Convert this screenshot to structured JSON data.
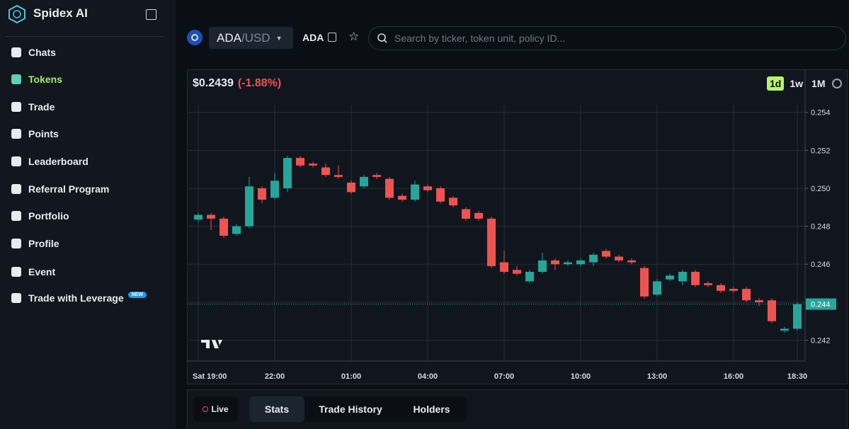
{
  "sidebar": {
    "brand": "Spidex AI",
    "items": [
      "Chats",
      "Tokens",
      "Trade",
      "Points",
      "Leaderboard",
      "Referral Program",
      "Portfolio",
      "Profile",
      "Event",
      "Trade with Leverage"
    ],
    "active": "Tokens",
    "badge": "NEW"
  },
  "header": {
    "pair_base": "ADA",
    "pair_quote": "/USD",
    "ticker": "ADA",
    "search_placeholder": "Search by ticker, token unit, policy ID..."
  },
  "panel": {
    "price": "$0.2439",
    "change": "(-1.88%)",
    "timeframes": [
      "1d",
      "1w",
      "1M"
    ],
    "active_timeframe": "1d"
  },
  "chart_data": {
    "type": "candlestick",
    "categories": [
      "Sat 19:00",
      null,
      null,
      null,
      null,
      null,
      "22:00",
      null,
      null,
      null,
      null,
      null,
      "01:00",
      null,
      null,
      null,
      null,
      null,
      "04:00",
      null,
      null,
      null,
      null,
      null,
      "07:00",
      null,
      null,
      null,
      null,
      null,
      "10:00",
      null,
      null,
      null,
      null,
      null,
      "13:00",
      null,
      null,
      null,
      null,
      null,
      "16:00",
      null,
      null,
      null,
      null,
      "18:30"
    ],
    "open": [
      0.24835,
      0.2486,
      0.2484,
      0.2476,
      0.248,
      0.25,
      0.2495,
      0.25,
      0.2516,
      0.2513,
      0.2511,
      0.2507,
      0.2503,
      0.2501,
      0.2507,
      0.2505,
      0.2496,
      0.2494,
      0.2501,
      0.25,
      0.2495,
      0.2489,
      0.2487,
      0.2484,
      0.2461,
      0.2457,
      0.2451,
      0.2456,
      0.2462,
      0.246,
      0.246,
      0.2461,
      0.2467,
      0.2464,
      0.2462,
      0.2458,
      0.2444,
      0.2452,
      0.2451,
      0.2456,
      0.245,
      0.2449,
      0.2447,
      0.2447,
      0.2441,
      0.2441,
      0.2425,
      0.2426
    ],
    "high": [
      0.2487,
      0.2487,
      0.2485,
      0.2481,
      0.2506,
      0.2501,
      0.2508,
      0.2517,
      0.2517,
      0.2514,
      0.2513,
      0.2512,
      0.2504,
      0.2507,
      0.2508,
      0.2506,
      0.2497,
      0.2504,
      0.2502,
      0.2501,
      0.2496,
      0.249,
      0.2488,
      0.2485,
      0.2467,
      0.2459,
      0.2457,
      0.2466,
      0.2463,
      0.2462,
      0.2463,
      0.2466,
      0.2468,
      0.2465,
      0.2463,
      0.2459,
      0.2452,
      0.2455,
      0.2457,
      0.2457,
      0.2451,
      0.245,
      0.2448,
      0.2448,
      0.2442,
      0.2442,
      0.2427,
      0.244
    ],
    "low": [
      0.2482,
      0.2478,
      0.2474,
      0.2475,
      0.2479,
      0.2492,
      0.2494,
      0.2498,
      0.2511,
      0.2511,
      0.2506,
      0.2505,
      0.2497,
      0.25,
      0.2505,
      0.2494,
      0.2493,
      0.2493,
      0.2498,
      0.2492,
      0.249,
      0.2483,
      0.2483,
      0.2458,
      0.2455,
      0.2454,
      0.245,
      0.2455,
      0.2457,
      0.2459,
      0.2459,
      0.2459,
      0.2463,
      0.2461,
      0.246,
      0.2442,
      0.2443,
      0.2451,
      0.2449,
      0.2448,
      0.2448,
      0.2445,
      0.2445,
      0.244,
      0.2438,
      0.2429,
      0.2424,
      0.2425
    ],
    "close": [
      0.2486,
      0.2484,
      0.2475,
      0.248,
      0.2501,
      0.2494,
      0.2504,
      0.2516,
      0.2512,
      0.2512,
      0.2507,
      0.2506,
      0.2498,
      0.2506,
      0.2506,
      0.2495,
      0.2494,
      0.2502,
      0.2499,
      0.2493,
      0.2491,
      0.2484,
      0.2484,
      0.2459,
      0.2456,
      0.2455,
      0.2456,
      0.2462,
      0.246,
      0.2461,
      0.2462,
      0.2465,
      0.2464,
      0.2462,
      0.2461,
      0.2443,
      0.2451,
      0.2454,
      0.2456,
      0.2449,
      0.2449,
      0.2446,
      0.2446,
      0.2441,
      0.244,
      0.243,
      0.2426,
      0.2439
    ],
    "up_color": "#26a69a",
    "down_color": "#ef5350",
    "ylim": [
      0.2409,
      0.2544
    ],
    "yticks": [
      0.242,
      0.244,
      0.246,
      0.248,
      {
        "value": 0.25,
        "label": "0.250"
      },
      0.252,
      0.254
    ],
    "grid": true,
    "last_price": {
      "value": 0.2439,
      "label": "0.244"
    }
  },
  "footer_tabs": {
    "live": "Live",
    "tabs": [
      "Stats",
      "Trade History",
      "Holders"
    ],
    "active": "Stats"
  }
}
